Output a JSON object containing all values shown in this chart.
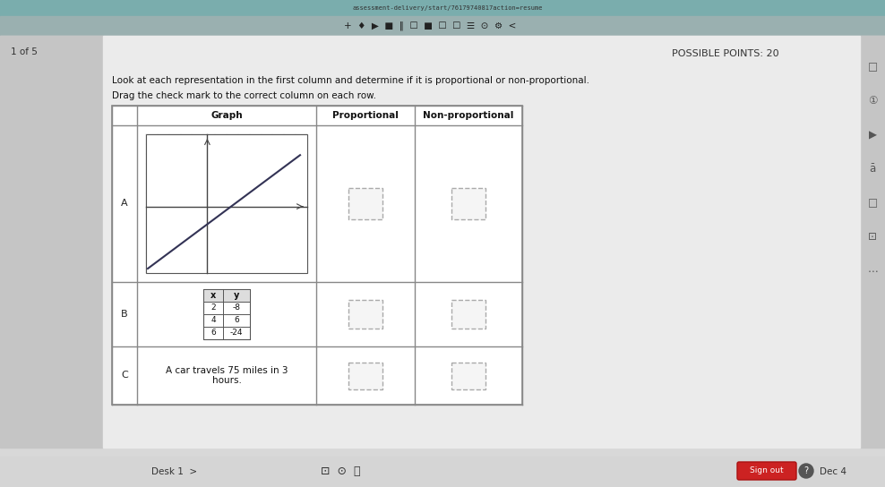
{
  "bg_color": "#c8c8c8",
  "browser_top_color": "#6a9a9a",
  "browser_url_color": "#5a8888",
  "toolbar_color": "#888888",
  "content_bg": "#e8e8e8",
  "white_panel": "#f0f0f0",
  "url_text": "assessment-delivery/start/76179740817action=resume",
  "header_text": "POSSIBLE POINTS: 20",
  "instruction1": "Look at each representation in the first column and determine if it is proportional or non-proportional.",
  "instruction2": "Drag the check mark to the correct column on each row.",
  "col_headers": [
    "Graph",
    "Proportional",
    "Non-proportional"
  ],
  "row_labels": [
    "A",
    "B",
    "C"
  ],
  "row_B_table": {
    "headers": [
      "x",
      "y"
    ],
    "data": [
      [
        "2",
        "-8"
      ],
      [
        "4",
        "6"
      ],
      [
        "6",
        "-24"
      ]
    ]
  },
  "row_C_text": "A car travels 75 miles in 3\nhours.",
  "table_border_color": "#888888",
  "dashed_box_color": "#999999",
  "graph_grid_color": "#cccccc",
  "graph_line_color": "#333355",
  "graph_axis_color": "#555555",
  "text_color": "#222222",
  "sidebar_icons_color": "#444444",
  "sign_out_color": "#cc2222",
  "footer_text": "Desk 1",
  "page_indicator": "1 of 5",
  "date_text": "Dec 4"
}
